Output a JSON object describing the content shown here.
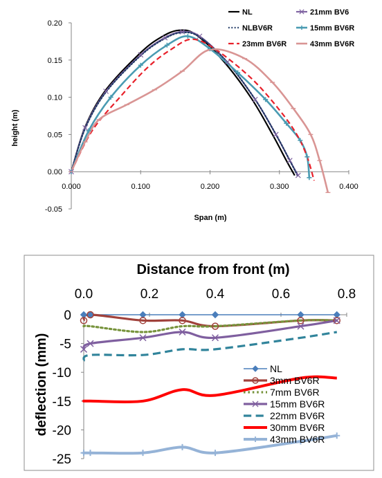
{
  "chart_data": [
    {
      "type": "line",
      "title": "",
      "xlabel": "Span (m)",
      "ylabel": "height (m)",
      "xlim": [
        0,
        0.4
      ],
      "ylim": [
        -0.05,
        0.2
      ],
      "xticks": [
        "0.000",
        "0.100",
        "0.200",
        "0.300",
        "0.400"
      ],
      "yticks": [
        "0.20",
        "0.15",
        "0.10",
        "0.05",
        "0.00",
        "-0.05"
      ],
      "legend_position": "top-right",
      "series": [
        {
          "name": "NL",
          "color": "#000000",
          "dash": "solid",
          "marker": "none",
          "x": [
            0,
            0.02,
            0.05,
            0.1,
            0.13,
            0.155,
            0.18,
            0.22,
            0.26,
            0.29,
            0.31,
            0.322
          ],
          "y": [
            0,
            0.06,
            0.11,
            0.16,
            0.181,
            0.19,
            0.184,
            0.148,
            0.098,
            0.05,
            0.015,
            -0.005
          ]
        },
        {
          "name": "21mm BV6",
          "color": "#8064a2",
          "dash": "solid",
          "marker": "x",
          "x": [
            0,
            0.02,
            0.05,
            0.1,
            0.135,
            0.16,
            0.185,
            0.225,
            0.265,
            0.295,
            0.315,
            0.327
          ],
          "y": [
            0,
            0.059,
            0.108,
            0.157,
            0.18,
            0.188,
            0.182,
            0.147,
            0.097,
            0.05,
            0.015,
            -0.005
          ]
        },
        {
          "name": "NLBV6R",
          "color": "#1f3864",
          "dash": "dot",
          "marker": "none",
          "x": [
            0,
            0.02,
            0.05,
            0.1,
            0.135,
            0.16,
            0.185,
            0.225,
            0.265,
            0.295,
            0.315,
            0.326
          ],
          "y": [
            0,
            0.058,
            0.107,
            0.156,
            0.179,
            0.187,
            0.181,
            0.147,
            0.097,
            0.05,
            0.015,
            -0.005
          ]
        },
        {
          "name": "15mm BV6R",
          "color": "#4a9bb2",
          "dash": "solid",
          "marker": "plus",
          "x": [
            0,
            0.025,
            0.057,
            0.1,
            0.138,
            0.168,
            0.2,
            0.24,
            0.28,
            0.31,
            0.33,
            0.34,
            0.343
          ],
          "y": [
            0,
            0.055,
            0.1,
            0.143,
            0.17,
            0.182,
            0.165,
            0.133,
            0.097,
            0.065,
            0.042,
            0.02,
            -0.008
          ]
        },
        {
          "name": "23mm BV6R",
          "color": "#e8202a",
          "dash": "dash",
          "marker": "none",
          "x": [
            0,
            0.03,
            0.07,
            0.11,
            0.145,
            0.175,
            0.21,
            0.26,
            0.3,
            0.325,
            0.34,
            0.35
          ],
          "y": [
            0,
            0.055,
            0.1,
            0.14,
            0.165,
            0.178,
            0.163,
            0.125,
            0.083,
            0.05,
            0.02,
            -0.012
          ]
        },
        {
          "name": "43mm BV6R",
          "color": "#d99594",
          "dash": "solid",
          "marker": "dash",
          "x": [
            0,
            0.02,
            0.04,
            0.08,
            0.12,
            0.16,
            0.2,
            0.25,
            0.29,
            0.32,
            0.345,
            0.358,
            0.37
          ],
          "y": [
            0,
            0.04,
            0.07,
            0.09,
            0.11,
            0.135,
            0.164,
            0.152,
            0.12,
            0.085,
            0.05,
            0.015,
            -0.028
          ]
        }
      ]
    },
    {
      "type": "line",
      "title": "",
      "xlabel": "Distance from front (m)",
      "ylabel": "deflection (mm)",
      "xlim": [
        0,
        0.8
      ],
      "ylim": [
        -25,
        0
      ],
      "xticks": [
        "0.0",
        "0.2",
        "0.4",
        "0.6",
        "0.8"
      ],
      "yticks": [
        "0",
        "-5",
        "-10",
        "-15",
        "-20",
        "-25"
      ],
      "legend_position": "bottom-right",
      "series": [
        {
          "name": "NL",
          "color": "#4a7ebb",
          "dash": "solid",
          "marker": "diamond",
          "x": [
            0,
            0.02,
            0.18,
            0.3,
            0.4,
            0.66,
            0.77
          ],
          "y": [
            0,
            0,
            0,
            0,
            0,
            0,
            0
          ]
        },
        {
          "name": "3mm BV6R",
          "color": "#a0413b",
          "dash": "solid",
          "marker": "circle",
          "x": [
            0,
            0.02,
            0.18,
            0.3,
            0.4,
            0.66,
            0.77
          ],
          "y": [
            -1,
            0,
            -1,
            -1,
            -2,
            -1,
            -1
          ]
        },
        {
          "name": "7mm BV6R",
          "color": "#77933c",
          "dash": "dot",
          "marker": "none",
          "x": [
            0,
            0.02,
            0.18,
            0.3,
            0.4,
            0.66,
            0.77
          ],
          "y": [
            -2,
            -2,
            -3,
            -2,
            -2,
            -1,
            -1
          ]
        },
        {
          "name": "15mm BV6R",
          "color": "#7f5f9f",
          "dash": "solid",
          "marker": "x",
          "x": [
            0,
            0.02,
            0.18,
            0.3,
            0.4,
            0.66,
            0.77
          ],
          "y": [
            -6,
            -5,
            -4,
            -3,
            -4,
            -2,
            -1
          ]
        },
        {
          "name": "22mm BV6R",
          "color": "#31849b",
          "dash": "dash",
          "marker": "none",
          "x": [
            0,
            0.02,
            0.18,
            0.3,
            0.4,
            0.66,
            0.77
          ],
          "y": [
            -8,
            -7,
            -7,
            -6,
            -6,
            -4,
            -3
          ]
        },
        {
          "name": "30mm BV6R",
          "color": "#ff0000",
          "dash": "solid",
          "marker": "none",
          "x": [
            0,
            0.02,
            0.18,
            0.3,
            0.4,
            0.66,
            0.77
          ],
          "y": [
            -15,
            -15,
            -15,
            -13,
            -14,
            -11,
            -11
          ]
        },
        {
          "name": "43mm BV6R",
          "color": "#95b3d7",
          "dash": "solid",
          "marker": "plus",
          "x": [
            0,
            0.02,
            0.18,
            0.3,
            0.4,
            0.66,
            0.77
          ],
          "y": [
            -24,
            -24,
            -24,
            -23,
            -24,
            -22,
            -21
          ]
        }
      ]
    }
  ]
}
